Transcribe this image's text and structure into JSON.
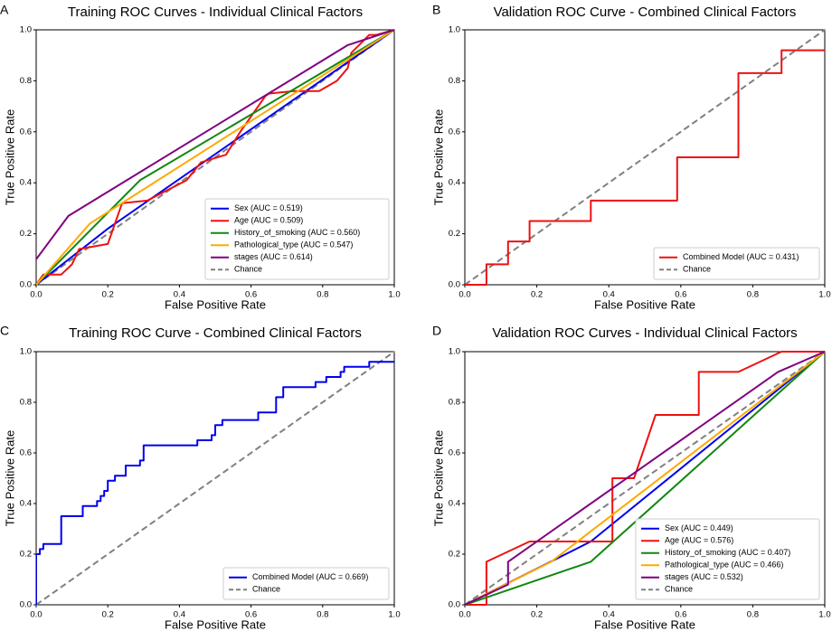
{
  "chart_data": [
    {
      "panel_label": "A",
      "type": "line",
      "title": "Training ROC Curves - Individual Clinical Factors",
      "xlabel": "False Positive Rate",
      "ylabel": "True Positive Rate",
      "xlim": [
        0,
        1
      ],
      "ylim": [
        0,
        1
      ],
      "xticks": [
        "0.0",
        "0.2",
        "0.4",
        "0.6",
        "0.8",
        "1.0"
      ],
      "yticks": [
        "0.0",
        "0.2",
        "0.4",
        "0.6",
        "0.8",
        "1.0"
      ],
      "legend_position": "lower-right",
      "series": [
        {
          "name": "Sex (AUC = 0.519)",
          "color": "#0000ee",
          "step": false,
          "x": [
            0,
            0.2,
            1
          ],
          "y": [
            0,
            0.22,
            1
          ]
        },
        {
          "name": "Age (AUC = 0.509)",
          "color": "#ee1111",
          "step": false,
          "x": [
            0,
            0.02,
            0.07,
            0.1,
            0.12,
            0.2,
            0.24,
            0.31,
            0.42,
            0.46,
            0.53,
            0.57,
            0.64,
            0.65,
            0.72,
            0.79,
            0.84,
            0.87,
            0.88,
            0.93,
            0.95,
            1
          ],
          "y": [
            0,
            0.04,
            0.04,
            0.08,
            0.14,
            0.16,
            0.32,
            0.33,
            0.41,
            0.48,
            0.51,
            0.6,
            0.74,
            0.75,
            0.76,
            0.76,
            0.8,
            0.85,
            0.91,
            0.98,
            0.98,
            1
          ]
        },
        {
          "name": "History_of_smoking (AUC = 0.560)",
          "color": "#118811",
          "step": false,
          "x": [
            0,
            0.29,
            1
          ],
          "y": [
            0,
            0.41,
            1
          ]
        },
        {
          "name": "Pathological_type (AUC = 0.547)",
          "color": "#ffaa00",
          "step": false,
          "x": [
            0,
            0.15,
            1
          ],
          "y": [
            0,
            0.24,
            1
          ]
        },
        {
          "name": "stages (AUC = 0.614)",
          "color": "#800080",
          "step": false,
          "x": [
            0,
            0.09,
            0.87,
            1
          ],
          "y": [
            0.1,
            0.27,
            0.94,
            1
          ]
        },
        {
          "name": "Chance",
          "color": "#808080",
          "dashed": true,
          "x": [
            0,
            1
          ],
          "y": [
            0,
            1
          ]
        }
      ]
    },
    {
      "panel_label": "B",
      "type": "line",
      "title": "Validation ROC Curve - Combined Clinical Factors",
      "xlabel": "False Positive Rate",
      "ylabel": "True Positive Rate",
      "xlim": [
        0,
        1
      ],
      "ylim": [
        0,
        1
      ],
      "xticks": [
        "0.0",
        "0.2",
        "0.4",
        "0.6",
        "0.8",
        "1.0"
      ],
      "yticks": [
        "0.0",
        "0.2",
        "0.4",
        "0.6",
        "0.8",
        "1.0"
      ],
      "legend_position": "lower-right",
      "series": [
        {
          "name": "Combined Model (AUC = 0.431)",
          "color": "#ee1111",
          "step": true,
          "x": [
            0,
            0.06,
            0.06,
            0.12,
            0.12,
            0.18,
            0.18,
            0.35,
            0.35,
            0.59,
            0.59,
            0.76,
            0.76,
            0.88,
            0.88,
            1
          ],
          "y": [
            0,
            0,
            0.08,
            0.08,
            0.17,
            0.17,
            0.25,
            0.25,
            0.33,
            0.33,
            0.5,
            0.5,
            0.83,
            0.83,
            0.92,
            0.92
          ]
        },
        {
          "name": "Chance",
          "color": "#808080",
          "dashed": true,
          "x": [
            0,
            1
          ],
          "y": [
            0,
            1
          ]
        }
      ]
    },
    {
      "panel_label": "C",
      "type": "line",
      "title": "Training ROC Curve - Combined Clinical Factors",
      "xlabel": "False Positive Rate",
      "ylabel": "True Positive Rate",
      "xlim": [
        0,
        1
      ],
      "ylim": [
        0,
        1
      ],
      "xticks": [
        "0.0",
        "0.2",
        "0.4",
        "0.6",
        "0.8",
        "1.0"
      ],
      "yticks": [
        "0.0",
        "0.2",
        "0.4",
        "0.6",
        "0.8",
        "1.0"
      ],
      "legend_position": "lower-right",
      "series": [
        {
          "name": "Combined Model (AUC = 0.669)",
          "color": "#0000ee",
          "step": true,
          "x": [
            0,
            0,
            0.01,
            0.01,
            0.02,
            0.02,
            0.07,
            0.07,
            0.13,
            0.13,
            0.15,
            0.15,
            0.17,
            0.17,
            0.18,
            0.18,
            0.19,
            0.19,
            0.2,
            0.2,
            0.22,
            0.22,
            0.25,
            0.25,
            0.29,
            0.29,
            0.3,
            0.3,
            0.45,
            0.45,
            0.49,
            0.49,
            0.5,
            0.5,
            0.52,
            0.52,
            0.62,
            0.62,
            0.67,
            0.67,
            0.69,
            0.69,
            0.75,
            0.75,
            0.78,
            0.78,
            0.81,
            0.81,
            0.83,
            0.83,
            0.85,
            0.85,
            0.86,
            0.86,
            0.89,
            0.89,
            0.93,
            0.93,
            0.95,
            0.95,
            1
          ],
          "y": [
            0,
            0.2,
            0.2,
            0.22,
            0.22,
            0.24,
            0.24,
            0.35,
            0.35,
            0.39,
            0.39,
            0.39,
            0.39,
            0.41,
            0.41,
            0.43,
            0.43,
            0.45,
            0.45,
            0.49,
            0.49,
            0.51,
            0.51,
            0.55,
            0.55,
            0.57,
            0.57,
            0.63,
            0.63,
            0.65,
            0.65,
            0.67,
            0.67,
            0.71,
            0.71,
            0.73,
            0.73,
            0.76,
            0.76,
            0.82,
            0.82,
            0.86,
            0.86,
            0.86,
            0.86,
            0.88,
            0.88,
            0.9,
            0.9,
            0.9,
            0.9,
            0.92,
            0.92,
            0.94,
            0.94,
            0.94,
            0.94,
            0.96,
            0.96,
            0.96,
            0.96
          ]
        },
        {
          "name": "Chance",
          "color": "#808080",
          "dashed": true,
          "x": [
            0,
            1
          ],
          "y": [
            0,
            1
          ]
        }
      ]
    },
    {
      "panel_label": "D",
      "type": "line",
      "title": "Validation ROC Curves - Individual Clinical Factors",
      "xlabel": "False Positive Rate",
      "ylabel": "True Positive Rate",
      "xlim": [
        0,
        1
      ],
      "ylim": [
        0,
        1
      ],
      "xticks": [
        "0.0",
        "0.2",
        "0.4",
        "0.6",
        "0.8",
        "1.0"
      ],
      "yticks": [
        "0.0",
        "0.2",
        "0.4",
        "0.6",
        "0.8",
        "1.0"
      ],
      "legend_position": "lower-right",
      "series": [
        {
          "name": "Sex (AUC = 0.449)",
          "color": "#0000ee",
          "step": false,
          "x": [
            0,
            0.35,
            1
          ],
          "y": [
            0,
            0.25,
            1
          ]
        },
        {
          "name": "Age (AUC = 0.576)",
          "color": "#ee1111",
          "step": false,
          "x": [
            0,
            0.06,
            0.06,
            0.18,
            0.41,
            0.41,
            0.47,
            0.53,
            0.53,
            0.65,
            0.65,
            0.76,
            0.88,
            0.88,
            1
          ],
          "y": [
            0,
            0,
            0.17,
            0.25,
            0.25,
            0.5,
            0.5,
            0.75,
            0.75,
            0.75,
            0.92,
            0.92,
            1,
            1,
            1
          ]
        },
        {
          "name": "History_of_smoking (AUC = 0.407)",
          "color": "#118811",
          "step": false,
          "x": [
            0,
            0.35,
            1
          ],
          "y": [
            0,
            0.17,
            1
          ]
        },
        {
          "name": "Pathological_type (AUC = 0.466)",
          "color": "#ffaa00",
          "step": false,
          "x": [
            0,
            0.24,
            1
          ],
          "y": [
            0,
            0.17,
            1
          ]
        },
        {
          "name": "stages (AUC = 0.532)",
          "color": "#800080",
          "step": false,
          "x": [
            0,
            0.12,
            0.12,
            0.87,
            1
          ],
          "y": [
            0,
            0.08,
            0.17,
            0.92,
            1
          ]
        },
        {
          "name": "Chance",
          "color": "#808080",
          "dashed": true,
          "x": [
            0,
            1
          ],
          "y": [
            0,
            1
          ]
        }
      ]
    }
  ]
}
